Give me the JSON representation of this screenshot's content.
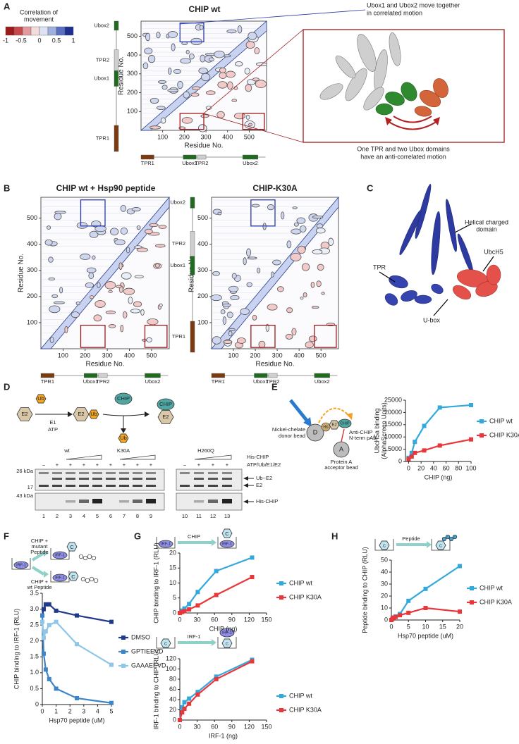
{
  "figure": {
    "letters": [
      "A",
      "B",
      "C",
      "D",
      "E",
      "F",
      "G",
      "H"
    ],
    "a": {
      "legend_title": [
        "Correlation of",
        "movement"
      ],
      "colorbar": [
        "-1",
        "-0.5",
        "0",
        "0.5",
        "1"
      ],
      "title": "CHIP wt",
      "note_top": [
        "Ubox1 and Ubox2 move together",
        "in correlated motion"
      ],
      "note_bottom": [
        "One TPR and two Ubox domains",
        "have an anti-correlated motion"
      ]
    },
    "maps": {
      "lim": [
        0,
        580
      ],
      "ticks": [
        100,
        200,
        300,
        400,
        500
      ],
      "axis_label": "Residue No.",
      "domains": [
        "TPR1",
        "Ubox1",
        "TPR2",
        "Ubox2"
      ]
    },
    "b": {
      "titles": [
        "CHIP wt + Hsp90 peptide",
        "CHIP-K30A"
      ]
    },
    "c": {
      "labels": [
        "Helical charged",
        "domain",
        "TPR",
        "UbcH5",
        "U-box"
      ]
    },
    "d": {
      "e2": "E2",
      "ub": "Ub",
      "e1": "E1",
      "atp": "ATP",
      "chip": "CHIP",
      "groups": [
        "wt",
        "K30A",
        "H260Q"
      ],
      "rows": [
        "His-CHIP",
        "ATP/Ub/E1/E2"
      ],
      "minus": "–",
      "plus": "+",
      "markers": [
        "26 kDa",
        "17",
        "43 kDa"
      ],
      "bands": [
        "Ub~E2",
        "E2",
        "His-CHIP"
      ],
      "lanes": [
        "1",
        "2",
        "3",
        "4",
        "5",
        "6",
        "7",
        "8",
        "9",
        "10",
        "11",
        "12",
        "13"
      ]
    },
    "e": {
      "donor": [
        "Nickel-chelate",
        "donor bead"
      ],
      "d": "D",
      "his": "His",
      "e2": "E2",
      "chip": "CHIP",
      "ab": [
        "Anti-CHIP",
        "N-term pAb"
      ],
      "a": "A",
      "acceptor": [
        "Protein A",
        "acceptor bead"
      ]
    },
    "f": {
      "mutant": [
        "CHIP +",
        "mutant",
        "Peptide"
      ],
      "wt": [
        "CHIP +",
        "wt Peptide"
      ],
      "irf": "IRF-1",
      "c": "C"
    },
    "g": {
      "irf": "IRF-1",
      "chip": "CHIP",
      "c": "C"
    },
    "h": {
      "c": "C",
      "peptide": "Peptide"
    }
  },
  "chart_data": [
    {
      "type": "line",
      "xlabel": "CHIP (ng)",
      "ylabel": [
        "UbcH5a binding",
        "(AlphaScreen Units)"
      ],
      "x": [
        0,
        5,
        10,
        25,
        50,
        100
      ],
      "series": [
        {
          "name": "CHIP wt",
          "color": "#33a8dd",
          "values": [
            1500,
            3500,
            8000,
            14500,
            22000,
            23000
          ]
        },
        {
          "name": "CHIP K30A",
          "color": "#e8373a",
          "values": [
            1000,
            2000,
            3500,
            4500,
            6500,
            9000
          ]
        }
      ],
      "xlim": [
        -5,
        100
      ],
      "xticks": [
        0,
        20,
        40,
        60,
        80,
        100
      ],
      "ylim": [
        0,
        25000
      ],
      "yticks": [
        0,
        5000,
        10000,
        15000,
        20000,
        25000
      ],
      "legend": "right"
    },
    {
      "type": "line",
      "xlabel": "Hsp70 peptide (uM)",
      "ylabel": [
        "CHIP binding to IRF-1 (RLU)"
      ],
      "x": [
        0,
        0.1,
        0.25,
        0.5,
        1,
        2.5,
        5
      ],
      "series": [
        {
          "name": "DMSO",
          "color": "#1f3a8a",
          "values": [
            2.8,
            3.0,
            3.15,
            3.15,
            2.95,
            2.8,
            2.6
          ]
        },
        {
          "name": "GPTIEEVD",
          "color": "#3d85c6",
          "values": [
            2.8,
            1.6,
            1.1,
            0.8,
            0.5,
            0.2,
            0.05
          ]
        },
        {
          "name": "GAAAEEVD",
          "color": "#8ec6e8",
          "values": [
            2.6,
            2.1,
            2.3,
            2.5,
            2.6,
            1.9,
            1.25
          ]
        }
      ],
      "xlim": [
        0,
        5
      ],
      "xticks": [
        0,
        1,
        2,
        3,
        4,
        5
      ],
      "ylim": [
        0,
        3.5
      ],
      "yticks": [
        0,
        0.5,
        {
          "value": 1,
          "label": "1.0"
        },
        1.5,
        {
          "value": 2,
          "label": "2.0"
        },
        2.5,
        {
          "value": 3,
          "label": "3.0"
        },
        3.5
      ],
      "legend": "right"
    },
    {
      "type": "line",
      "xlabel": "CHIP (ng)",
      "ylabel": [
        "CHIP binding to IRF-1 (RLU)"
      ],
      "x": [
        0,
        4,
        8,
        16,
        31,
        63,
        125
      ],
      "series": [
        {
          "name": "CHIP wt",
          "color": "#33a8dd",
          "values": [
            0,
            0.8,
            1.5,
            3,
            7,
            14,
            18.5
          ]
        },
        {
          "name": "CHIP K30A",
          "color": "#e8373a",
          "values": [
            0,
            0.3,
            0.6,
            1.2,
            2.5,
            6,
            12
          ]
        }
      ],
      "xlim": [
        0,
        150
      ],
      "xticks": [
        0,
        30,
        60,
        90,
        120,
        150
      ],
      "ylim": [
        0,
        20
      ],
      "yticks": [
        0,
        5,
        10,
        15,
        20
      ],
      "legend": "right"
    },
    {
      "type": "line",
      "xlabel": "IRF-1 (ng)",
      "ylabel": [
        "IRF-1 binding to CHIP (RLU)"
      ],
      "x": [
        0,
        4,
        8,
        16,
        31,
        63,
        125
      ],
      "series": [
        {
          "name": "CHIP wt",
          "color": "#33a8dd",
          "values": [
            0,
            25,
            35,
            42,
            55,
            85,
            118
          ]
        },
        {
          "name": "CHIP K30A",
          "color": "#e8373a",
          "values": [
            0,
            15,
            22,
            32,
            50,
            80,
            115
          ]
        }
      ],
      "xlim": [
        0,
        150
      ],
      "xticks": [
        0,
        30,
        60,
        90,
        120,
        150
      ],
      "ylim": [
        0,
        120
      ],
      "yticks": [
        0,
        20,
        40,
        60,
        80,
        100,
        120
      ],
      "legend": "right"
    },
    {
      "type": "line",
      "xlabel": "Hsp70 peptide (uM)",
      "ylabel": [
        "Peptide binding to CHIP (RLU)"
      ],
      "x": [
        0,
        0.3,
        0.6,
        1.25,
        2.5,
        5,
        10,
        20
      ],
      "series": [
        {
          "name": "CHIP wt",
          "color": "#33a8dd",
          "values": [
            0,
            1,
            2,
            3,
            5,
            16,
            26,
            45
          ]
        },
        {
          "name": "CHIP K30A",
          "color": "#e8373a",
          "values": [
            0,
            1,
            2,
            2.5,
            4,
            6,
            10,
            7
          ]
        }
      ],
      "xlim": [
        0,
        20
      ],
      "xticks": [
        0,
        5,
        10,
        15,
        20
      ],
      "ylim": [
        0,
        50
      ],
      "yticks": [
        0,
        10,
        20,
        30,
        40,
        50
      ],
      "legend": "right"
    }
  ]
}
